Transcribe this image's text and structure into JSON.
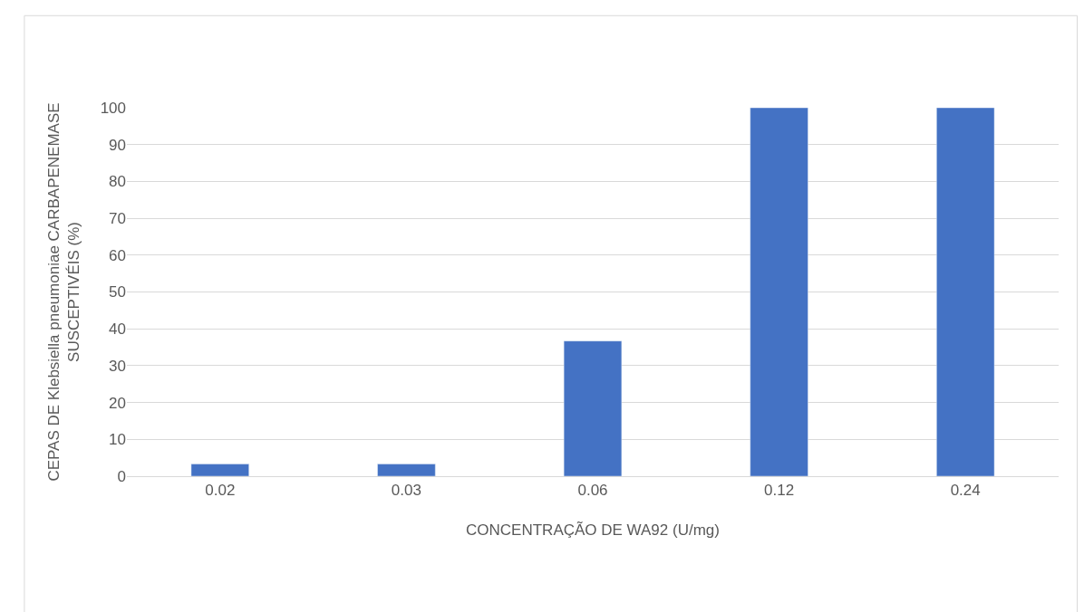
{
  "chart_data": {
    "type": "bar",
    "xlabel": "CONCENTRAÇÃO DE WA92 (U/mg)",
    "ylabel": "CEPAS DE Klebsiella pneumoniae CARBAPENEMASE\nSUSCEPTIVÉIS (%)",
    "categories": [
      "0.02",
      "0.03",
      "0.06",
      "0.12",
      "0.24"
    ],
    "values": [
      3.3,
      3.3,
      36.7,
      100,
      100
    ],
    "color": "#4472c4",
    "ylim": [
      0,
      100
    ],
    "yticks": [
      0,
      10,
      20,
      30,
      40,
      50,
      60,
      70,
      80,
      90,
      100
    ],
    "grid": "y"
  }
}
